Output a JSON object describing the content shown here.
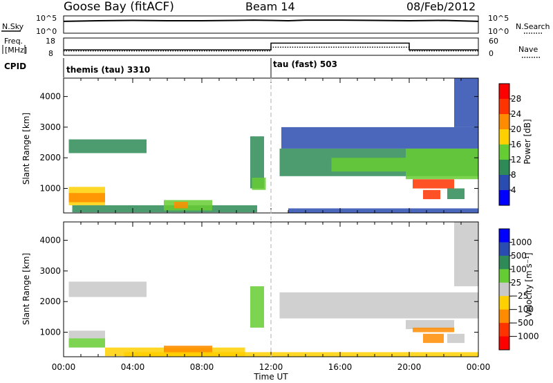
{
  "header": {
    "title": "Goose Bay (fitACF)",
    "beam": "Beam 14",
    "date": "08/Feb/2012"
  },
  "nsky_panel": {
    "left_label": "N.Sky",
    "left_ticks": [
      "10^5",
      "10^0"
    ],
    "right_ticks": [
      "10^5",
      "10^0"
    ],
    "right_label": "N.Search"
  },
  "freq_panel": {
    "left_label_line1": "Freq.",
    "left_label_line2": "[MHz]",
    "left_ticks": [
      "18",
      "8"
    ],
    "right_ticks": [
      "60",
      "0"
    ],
    "right_label": "Nave"
  },
  "cpid": {
    "label": "CPID",
    "segments": [
      {
        "text": "themis (tau) 3310",
        "start_hour": 0,
        "end_hour": 12
      },
      {
        "text": "tau (fast) 503",
        "start_hour": 12,
        "end_hour": 24
      }
    ]
  },
  "axes": {
    "xlabel": "Time UT",
    "x_ticks": [
      "00:00",
      "04:00",
      "08:00",
      "12:00",
      "16:00",
      "20:00",
      "00:00"
    ],
    "ylabel": "Slant Range [km]",
    "y_ticks": [
      "1000",
      "2000",
      "3000",
      "4000"
    ]
  },
  "power_colorbar": {
    "label": "Power [dB]",
    "ticks": [
      "4",
      "8",
      "12",
      "16",
      "20",
      "24",
      "28"
    ],
    "colors": [
      "#0000ff",
      "#2a4cb0",
      "#2e8b57",
      "#66cc33",
      "#ffd000",
      "#ff8c00",
      "#ff3300",
      "#ff0000"
    ]
  },
  "velocity_colorbar": {
    "label": "Velocity [m s⁻¹]",
    "ticks": [
      "1000",
      "500",
      "100",
      "25",
      "−25",
      "−100",
      "−500",
      "−1000"
    ],
    "colors": [
      "#0000ff",
      "#2a4cb0",
      "#2e8b57",
      "#66cc33",
      "#c8c8c8",
      "#ffd000",
      "#ff8c00",
      "#ff3300",
      "#ff0000"
    ]
  },
  "chart_data": [
    {
      "type": "line",
      "title": "N.Sky / N.Search",
      "x": [
        0,
        2,
        4,
        6,
        8,
        10,
        11,
        12,
        13,
        14,
        16,
        18,
        20,
        22,
        24
      ],
      "y_log10": [
        3.5,
        3.7,
        3.8,
        3.7,
        3.7,
        3.8,
        3.9,
        3.8,
        3.7,
        3.9,
        3.9,
        3.8,
        3.7,
        3.8,
        3.5
      ],
      "ylim_log10": [
        0,
        5
      ]
    },
    {
      "type": "line",
      "title": "Freq. / Nave",
      "series": [
        {
          "name": "Freq.",
          "x": [
            0,
            12,
            12,
            20,
            20,
            24
          ],
          "y": [
            11,
            11,
            15.2,
            15.2,
            11,
            11
          ]
        },
        {
          "name": "Nave",
          "x": [
            0,
            12,
            12,
            20,
            20,
            24
          ],
          "y": [
            14,
            14,
            28,
            28,
            14,
            14
          ]
        }
      ],
      "ylim_freq": [
        8,
        18
      ],
      "ylim_nave": [
        0,
        60
      ]
    },
    {
      "type": "heatmap",
      "title": "Power [dB]",
      "xlabel": "Time UT",
      "ylabel": "Slant Range [km]",
      "xlim": [
        0,
        24
      ],
      "ylim": [
        200,
        4600
      ],
      "regions": [
        {
          "t0": 0.3,
          "t1": 4.8,
          "r0": 2150,
          "r1": 2600,
          "value": 9
        },
        {
          "t0": 0.3,
          "t1": 2.4,
          "r0": 450,
          "r1": 1050,
          "value": 16
        },
        {
          "t0": 0.3,
          "t1": 2.4,
          "r0": 550,
          "r1": 850,
          "value": 22
        },
        {
          "t0": 0.5,
          "t1": 11.2,
          "r0": 220,
          "r1": 450,
          "value": 8
        },
        {
          "t0": 5.8,
          "t1": 8.6,
          "r0": 280,
          "r1": 620,
          "value": 14
        },
        {
          "t0": 6.4,
          "t1": 7.2,
          "r0": 350,
          "r1": 560,
          "value": 22
        },
        {
          "t0": 10.8,
          "t1": 11.6,
          "r0": 1000,
          "r1": 2700,
          "value": 8
        },
        {
          "t0": 10.9,
          "t1": 11.7,
          "r0": 950,
          "r1": 1350,
          "value": 14
        },
        {
          "t0": 12.5,
          "t1": 24,
          "r0": 1400,
          "r1": 2300,
          "value": 9
        },
        {
          "t0": 15.5,
          "t1": 19.8,
          "r0": 1550,
          "r1": 2000,
          "value": 15
        },
        {
          "t0": 19.8,
          "t1": 24,
          "r0": 1300,
          "r1": 2300,
          "value": 13
        },
        {
          "t0": 20.2,
          "t1": 22.6,
          "r0": 1000,
          "r1": 1300,
          "value": 24
        },
        {
          "t0": 20.8,
          "t1": 21.8,
          "r0": 650,
          "r1": 950,
          "value": 26
        },
        {
          "t0": 22.2,
          "t1": 23.2,
          "r0": 650,
          "r1": 1000,
          "value": 8
        },
        {
          "t0": 12.6,
          "t1": 24,
          "r0": 2300,
          "r1": 3000,
          "value": 6
        },
        {
          "t0": 22.6,
          "t1": 24,
          "r0": 3000,
          "r1": 4600,
          "value": 6
        },
        {
          "t0": 13.0,
          "t1": 24,
          "r0": 200,
          "r1": 350,
          "value": 6
        }
      ]
    },
    {
      "type": "heatmap",
      "title": "Velocity [m s⁻¹]",
      "xlabel": "Time UT",
      "ylabel": "Slant Range [km]",
      "xlim": [
        0,
        24
      ],
      "ylim": [
        200,
        4600
      ],
      "regions": [
        {
          "t0": 0.3,
          "t1": 4.8,
          "r0": 2150,
          "r1": 2650,
          "value": 0
        },
        {
          "t0": 0.3,
          "t1": 2.4,
          "r0": 800,
          "r1": 1050,
          "value": 0
        },
        {
          "t0": 0.3,
          "t1": 2.4,
          "r0": 500,
          "r1": 800,
          "value": 80
        },
        {
          "t0": 2.4,
          "t1": 10.5,
          "r0": 220,
          "r1": 500,
          "value": -60
        },
        {
          "t0": 5.8,
          "t1": 8.6,
          "r0": 300,
          "r1": 560,
          "value": -120
        },
        {
          "t0": 10.8,
          "t1": 11.6,
          "r0": 1150,
          "r1": 2500,
          "value": 60
        },
        {
          "t0": 12.5,
          "t1": 24,
          "r0": 1450,
          "r1": 2300,
          "value": 0
        },
        {
          "t0": 19.8,
          "t1": 22.6,
          "r0": 1100,
          "r1": 1400,
          "value": 0
        },
        {
          "t0": 20.2,
          "t1": 22.6,
          "r0": 1000,
          "r1": 1150,
          "value": -500
        },
        {
          "t0": 20.8,
          "t1": 22.0,
          "r0": 650,
          "r1": 950,
          "value": -200
        },
        {
          "t0": 22.2,
          "t1": 23.2,
          "r0": 650,
          "r1": 950,
          "value": 0
        },
        {
          "t0": 22.6,
          "t1": 24,
          "r0": 2500,
          "r1": 4600,
          "value": 0
        },
        {
          "t0": 3.5,
          "t1": 24,
          "r0": 200,
          "r1": 350,
          "value": -60
        }
      ]
    }
  ]
}
